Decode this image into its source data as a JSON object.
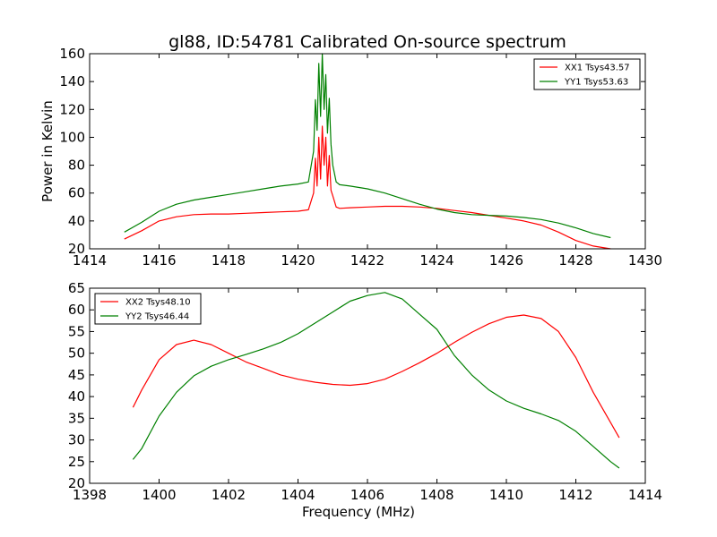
{
  "figure": {
    "title": "gl88, ID:54781 Calibrated On-source spectrum",
    "background": "#ffffff"
  },
  "chart_data": [
    {
      "type": "line",
      "xlim": [
        1414,
        1430
      ],
      "ylim": [
        20,
        160
      ],
      "xticks": [
        1414,
        1416,
        1418,
        1420,
        1422,
        1424,
        1426,
        1428,
        1430
      ],
      "yticks": [
        20,
        40,
        60,
        80,
        100,
        120,
        140,
        160
      ],
      "xlabel": "",
      "ylabel": "Power in Kelvin",
      "grid": false,
      "legend_position": "top-right",
      "series": [
        {
          "name": "XX1 Tsys43.57",
          "color": "#ff0000",
          "x": [
            1415.0,
            1415.5,
            1416.0,
            1416.5,
            1417.0,
            1417.5,
            1418.0,
            1418.5,
            1419.0,
            1419.5,
            1420.0,
            1420.3,
            1420.45,
            1420.5,
            1420.55,
            1420.6,
            1420.65,
            1420.7,
            1420.75,
            1420.8,
            1420.85,
            1420.9,
            1420.95,
            1421.0,
            1421.1,
            1421.2,
            1421.5,
            1422.0,
            1422.5,
            1423.0,
            1423.5,
            1424.0,
            1424.5,
            1425.0,
            1425.5,
            1426.0,
            1426.5,
            1427.0,
            1427.5,
            1428.0,
            1428.5,
            1429.0
          ],
          "y": [
            27,
            33,
            40,
            43,
            44.5,
            45,
            45,
            45.5,
            46,
            46.5,
            47,
            48,
            60,
            85,
            65,
            100,
            70,
            108,
            80,
            100,
            65,
            87,
            62,
            58,
            50,
            49,
            49.5,
            50,
            50.5,
            50.5,
            50,
            49,
            47.5,
            46,
            44,
            42,
            40,
            37,
            32,
            26,
            22,
            20
          ]
        },
        {
          "name": "YY1 Tsys53.63",
          "color": "#008000",
          "x": [
            1415.0,
            1415.5,
            1416.0,
            1416.5,
            1417.0,
            1417.5,
            1418.0,
            1418.5,
            1419.0,
            1419.5,
            1420.0,
            1420.3,
            1420.45,
            1420.5,
            1420.55,
            1420.6,
            1420.65,
            1420.7,
            1420.75,
            1420.8,
            1420.85,
            1420.9,
            1420.95,
            1421.0,
            1421.1,
            1421.2,
            1421.5,
            1422.0,
            1422.5,
            1423.0,
            1423.5,
            1424.0,
            1424.5,
            1425.0,
            1425.5,
            1426.0,
            1426.5,
            1427.0,
            1427.5,
            1428.0,
            1428.5,
            1429.0
          ],
          "y": [
            32,
            39,
            47,
            52,
            55,
            57,
            59,
            61,
            63,
            65,
            66.5,
            68,
            90,
            127,
            105,
            153,
            115,
            160,
            120,
            145,
            103,
            128,
            95,
            80,
            68,
            66,
            65,
            63,
            60,
            56,
            52,
            48.5,
            46,
            44.5,
            44,
            43.5,
            42.5,
            41,
            38.5,
            35,
            31,
            28
          ]
        }
      ]
    },
    {
      "type": "line",
      "xlim": [
        1398,
        1414
      ],
      "ylim": [
        20,
        65
      ],
      "xticks": [
        1398,
        1400,
        1402,
        1404,
        1406,
        1408,
        1410,
        1412,
        1414
      ],
      "yticks": [
        20,
        25,
        30,
        35,
        40,
        45,
        50,
        55,
        60,
        65
      ],
      "xlabel": "Frequency (MHz)",
      "ylabel": "",
      "grid": false,
      "legend_position": "top-left",
      "series": [
        {
          "name": "XX2 Tsys48.10",
          "color": "#ff0000",
          "x": [
            1399.25,
            1399.5,
            1400.0,
            1400.5,
            1401.0,
            1401.5,
            1402.0,
            1402.5,
            1403.0,
            1403.5,
            1404.0,
            1404.5,
            1405.0,
            1405.5,
            1406.0,
            1406.5,
            1407.0,
            1407.5,
            1408.0,
            1408.5,
            1409.0,
            1409.5,
            1410.0,
            1410.5,
            1411.0,
            1411.5,
            1412.0,
            1412.5,
            1413.0,
            1413.25
          ],
          "y": [
            37.5,
            41.5,
            48.5,
            52,
            53,
            52,
            50,
            48,
            46.5,
            45,
            44,
            43.3,
            42.8,
            42.6,
            43,
            44,
            45.8,
            47.8,
            50,
            52.5,
            54.8,
            56.8,
            58.3,
            58.8,
            58,
            55,
            49,
            41,
            34,
            30.5
          ]
        },
        {
          "name": "YY2 Tsys46.44",
          "color": "#008000",
          "x": [
            1399.25,
            1399.5,
            1400.0,
            1400.5,
            1401.0,
            1401.5,
            1402.0,
            1402.5,
            1403.0,
            1403.5,
            1404.0,
            1404.5,
            1405.0,
            1405.5,
            1406.0,
            1406.5,
            1407.0,
            1407.5,
            1408.0,
            1408.5,
            1409.0,
            1409.5,
            1410.0,
            1410.5,
            1411.0,
            1411.5,
            1412.0,
            1412.5,
            1413.0,
            1413.25
          ],
          "y": [
            25.5,
            28,
            35.5,
            41,
            44.8,
            47,
            48.5,
            49.7,
            51,
            52.5,
            54.5,
            57,
            59.5,
            62,
            63.3,
            64,
            62.5,
            59,
            55.5,
            49.5,
            45,
            41.5,
            39,
            37.3,
            36,
            34.5,
            32,
            28.5,
            25,
            23.5
          ]
        }
      ]
    }
  ]
}
